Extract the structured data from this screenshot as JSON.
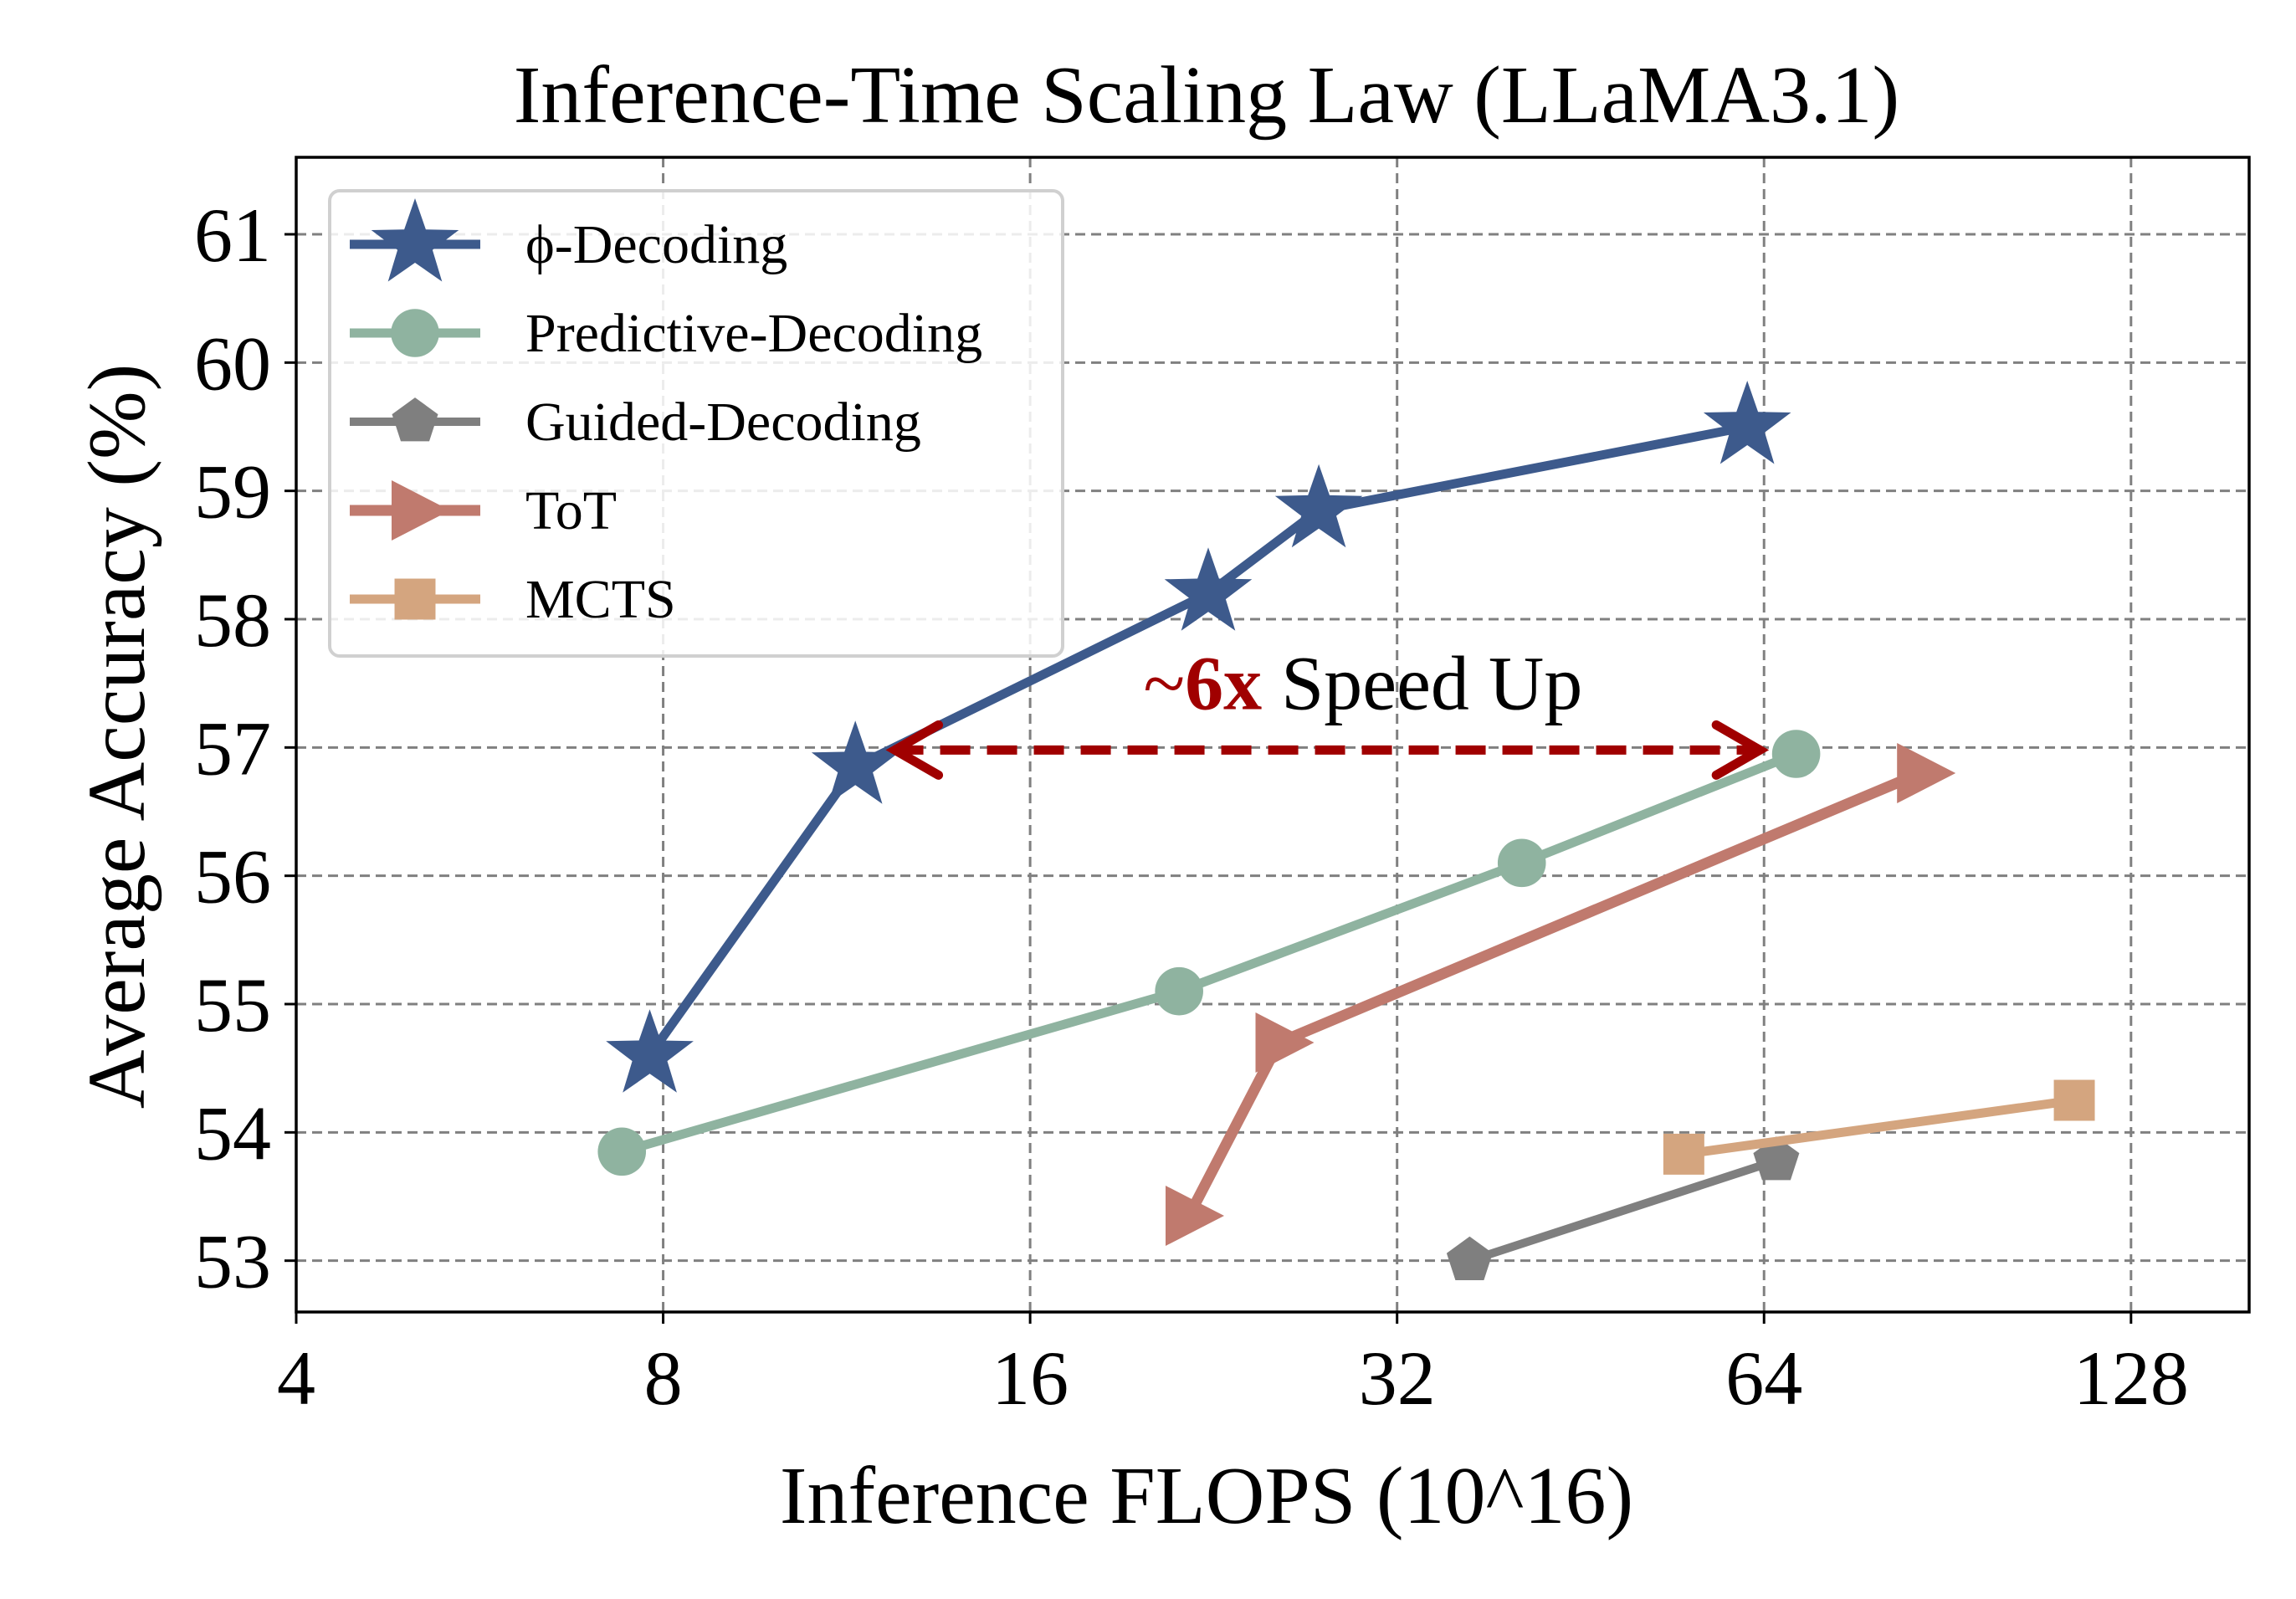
{
  "chart_data": {
    "type": "line",
    "title": "Inference-Time Scaling Law (LLaMA3.1)",
    "xlabel": "Inference FLOPS (10^16)",
    "ylabel": "Average Accuracy (%)",
    "x_scale": "log2",
    "xlim": [
      4,
      160
    ],
    "ylim": [
      52.6,
      61.6
    ],
    "x_ticks": [
      4,
      8,
      16,
      32,
      64,
      128
    ],
    "x_tick_labels": [
      "4",
      "8",
      "16",
      "32",
      "64",
      "128"
    ],
    "y_ticks": [
      53,
      54,
      55,
      56,
      57,
      58,
      59,
      60,
      61
    ],
    "y_tick_labels": [
      "53",
      "54",
      "55",
      "56",
      "57",
      "58",
      "59",
      "60",
      "61"
    ],
    "grid": true,
    "legend_position": "top-left",
    "series": [
      {
        "name": "ϕ-Decoding",
        "color": "#3D5A8C",
        "marker": "star",
        "x": [
          7.8,
          11.5,
          22.4,
          27.6,
          62.0
        ],
        "y": [
          54.6,
          56.85,
          58.2,
          58.85,
          59.5
        ]
      },
      {
        "name": "Predictive-Decoding",
        "color": "#8FB3A0",
        "marker": "circle",
        "x": [
          7.4,
          21.2,
          40.5,
          68.0
        ],
        "y": [
          53.85,
          55.1,
          56.1,
          56.95
        ]
      },
      {
        "name": "Guided-Decoding",
        "color": "#7F7F7F",
        "marker": "pentagon",
        "x": [
          36.7,
          65.5
        ],
        "y": [
          53.0,
          53.78
        ]
      },
      {
        "name": "ToT",
        "color": "#C07A6E",
        "marker": "triangle-right",
        "x": [
          21.6,
          25.6,
          86.0
        ],
        "y": [
          53.35,
          54.7,
          56.8
        ]
      },
      {
        "name": "MCTS",
        "color": "#D4A57F",
        "marker": "square",
        "x": [
          55.0,
          115.0
        ],
        "y": [
          53.83,
          54.25
        ]
      }
    ],
    "annotation": {
      "text_prefix": "~",
      "text_highlight": "6x",
      "text_suffix": " Speed Up",
      "highlight_color": "#A00000",
      "arrow_color": "#A00000",
      "x_from": 12.2,
      "x_to": 64.5,
      "y": 56.98,
      "label_x": 30.0,
      "label_y": 57.3
    }
  }
}
